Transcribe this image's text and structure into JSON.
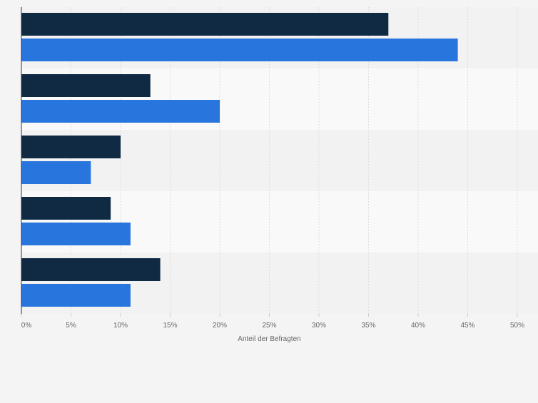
{
  "chart_data": {
    "type": "bar",
    "orientation": "horizontal",
    "title": "",
    "xlabel": "Anteil der Befragten",
    "ylabel": "",
    "xlim": [
      0,
      50
    ],
    "x_ticks": [
      0,
      5,
      10,
      15,
      20,
      25,
      30,
      35,
      40,
      45,
      50
    ],
    "x_tick_labels": [
      "0%",
      "5%",
      "10%",
      "15%",
      "20%",
      "25%",
      "30%",
      "35%",
      "40%",
      "45%",
      "50%"
    ],
    "grid": true,
    "legend": "none",
    "categories": [
      "",
      "",
      "",
      "",
      ""
    ],
    "series": [
      {
        "name": "",
        "color": "#0f2a42",
        "values": [
          37,
          13,
          10,
          9,
          14
        ]
      },
      {
        "name": "",
        "color": "#2876dd",
        "values": [
          44,
          20,
          7,
          11,
          11
        ]
      }
    ]
  },
  "colors": {
    "background": "#f4f4f4",
    "band_light": "#f9f9f9",
    "band_dark": "#f2f2f2",
    "grid": "#dddddd",
    "axis": "#333333",
    "tick_text": "#666666"
  }
}
